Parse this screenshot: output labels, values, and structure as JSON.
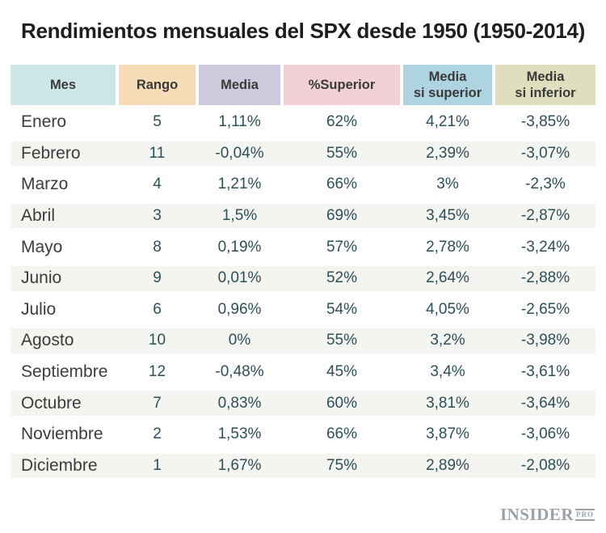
{
  "title": "Rendimientos mensuales del SPX desde 1950 (1950-2014)",
  "header": {
    "cells": [
      {
        "label": "Mes",
        "bg": "#cde6e8"
      },
      {
        "label": "Rango",
        "bg": "#f8dcb7"
      },
      {
        "label": "Media",
        "bg": "#cfc9dd"
      },
      {
        "label": "%Superior",
        "bg": "#f1d0d6"
      },
      {
        "label": "Media\nsi superior",
        "bg": "#aed4e1"
      },
      {
        "label": "Media\nsi inferior",
        "bg": "#dfdfc0"
      }
    ]
  },
  "chart_data": {
    "type": "table",
    "title": "Rendimientos mensuales del SPX desde 1950 (1950-2014)",
    "columns": [
      "Mes",
      "Rango",
      "Media",
      "%Superior",
      "Media si superior",
      "Media si inferior"
    ],
    "rows": [
      [
        "Enero",
        "5",
        "1,11%",
        "62%",
        "4,21%",
        "-3,85%"
      ],
      [
        "Febrero",
        "11",
        "-0,04%",
        "55%",
        "2,39%",
        "-3,07%"
      ],
      [
        "Marzo",
        "4",
        "1,21%",
        "66%",
        "3%",
        "-2,3%"
      ],
      [
        "Abril",
        "3",
        "1,5%",
        "69%",
        "3,45%",
        "-2,87%"
      ],
      [
        "Mayo",
        "8",
        "0,19%",
        "57%",
        "2,78%",
        "-3,24%"
      ],
      [
        "Junio",
        "9",
        "0,01%",
        "52%",
        "2,64%",
        "-2,88%"
      ],
      [
        "Julio",
        "6",
        "0,96%",
        "54%",
        "4,05%",
        "-2,65%"
      ],
      [
        "Agosto",
        "10",
        "0%",
        "55%",
        "3,2%",
        "-3,98%"
      ],
      [
        "Septiembre",
        "12",
        "-0,48%",
        "45%",
        "3,4%",
        "-3,61%"
      ],
      [
        "Octubre",
        "7",
        "0,83%",
        "60%",
        "3,81%",
        "-3,64%"
      ],
      [
        "Noviembre",
        "2",
        "1,53%",
        "66%",
        "3,87%",
        "-3,06%"
      ],
      [
        "Diciembre",
        "1",
        "1,67%",
        "75%",
        "2,89%",
        "-2,08%"
      ]
    ]
  },
  "logo": {
    "brand": "INSIDER",
    "suffix": "PRO"
  },
  "colors": {
    "title_text": "#1e1e1e",
    "header_text": "#3a3a3a",
    "month_text": "#3c3c3c",
    "value_text": "#2d4f58",
    "stripe": "#f4f4f1",
    "background": "#ffffff",
    "logo_gray": "#9aa1a9"
  }
}
